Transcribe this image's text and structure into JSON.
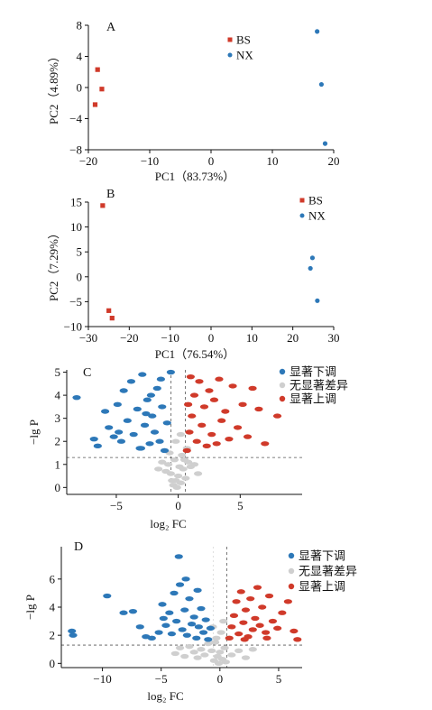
{
  "colors": {
    "red": "#d03a2a",
    "blue": "#2d78b8",
    "gray": "#cfcfcf"
  },
  "chart_data": [
    {
      "type": "scatter",
      "panel_label": "A",
      "xlabel": "PC1（83.73%）",
      "ylabel": "PC2（4.89%）",
      "xlim": [
        -20,
        20
      ],
      "ylim": [
        -8,
        8
      ],
      "xticks": [
        -20,
        -10,
        0,
        10,
        20
      ],
      "yticks": [
        -8,
        -4,
        0,
        4,
        8
      ],
      "xtick_labels": [
        "−20",
        "−10",
        "0",
        "10",
        "20"
      ],
      "ytick_labels": [
        "−8",
        "−4",
        "0",
        "4",
        "8"
      ],
      "legend_position": "top-right",
      "series": [
        {
          "name": "BS",
          "marker": "square",
          "color": "#d03a2a",
          "points": [
            [
              -18.5,
              2.3
            ],
            [
              -17.8,
              -0.2
            ],
            [
              -18.9,
              -2.2
            ]
          ]
        },
        {
          "name": "NX",
          "marker": "circle",
          "color": "#2d78b8",
          "points": [
            [
              17.3,
              7.2
            ],
            [
              18.0,
              0.4
            ],
            [
              18.6,
              -7.2
            ]
          ]
        }
      ]
    },
    {
      "type": "scatter",
      "panel_label": "B",
      "xlabel": "PC1（76.54%）",
      "ylabel": "PC2（7.29%）",
      "xlim": [
        -30,
        30
      ],
      "ylim": [
        -10,
        15
      ],
      "xticks": [
        -30,
        -20,
        -10,
        0,
        10,
        20,
        30
      ],
      "yticks": [
        -10,
        -5,
        0,
        5,
        10,
        15
      ],
      "xtick_labels": [
        "−30",
        "−20",
        "−10",
        "0",
        "10",
        "20",
        "30"
      ],
      "ytick_labels": [
        "−10",
        "−5",
        "0",
        "5",
        "10",
        "15"
      ],
      "legend_position": "top-right",
      "series": [
        {
          "name": "BS",
          "marker": "square",
          "color": "#d03a2a",
          "points": [
            [
              -26.5,
              14.3
            ],
            [
              -25.0,
              -6.8
            ],
            [
              -24.2,
              -8.3
            ]
          ]
        },
        {
          "name": "NX",
          "marker": "circle",
          "color": "#2d78b8",
          "points": [
            [
              24.8,
              3.8
            ],
            [
              24.3,
              1.7
            ],
            [
              26.0,
              -4.8
            ]
          ]
        }
      ]
    },
    {
      "type": "scatter",
      "subtype": "volcano",
      "panel_label": "C",
      "xlabel": "log₂ FC",
      "ylabel": "−lg P",
      "xlim": [
        -9,
        10
      ],
      "ylim": [
        -0.3,
        5.1
      ],
      "xticks": [
        -5,
        0,
        5
      ],
      "yticks": [
        0,
        1,
        2,
        3,
        4,
        5
      ],
      "xtick_labels": [
        "−5",
        "0",
        "5"
      ],
      "ytick_labels": [
        "0",
        "1",
        "2",
        "3",
        "4",
        "5"
      ],
      "threshold_y": 1.3,
      "threshold_x": [
        -0.58,
        0.58
      ],
      "legend_position": "top-right",
      "series": [
        {
          "name": "显著下调",
          "color": "#2d78b8",
          "points": [
            [
              -8.2,
              3.9
            ],
            [
              -6.8,
              2.1
            ],
            [
              -6.5,
              1.8
            ],
            [
              -5.9,
              3.3
            ],
            [
              -5.6,
              2.6
            ],
            [
              -5.2,
              2.2
            ],
            [
              -4.9,
              3.6
            ],
            [
              -4.6,
              2.0
            ],
            [
              -4.4,
              4.2
            ],
            [
              -4.1,
              2.9
            ],
            [
              -3.8,
              4.6
            ],
            [
              -3.6,
              2.3
            ],
            [
              -3.3,
              3.4
            ],
            [
              -3.1,
              1.7
            ],
            [
              -2.9,
              4.9
            ],
            [
              -2.7,
              2.7
            ],
            [
              -2.5,
              3.8
            ],
            [
              -2.3,
              1.9
            ],
            [
              -2.1,
              3.1
            ],
            [
              -1.9,
              2.4
            ],
            [
              -1.7,
              4.3
            ],
            [
              -1.5,
              2.0
            ],
            [
              -1.3,
              3.5
            ],
            [
              -1.1,
              1.6
            ],
            [
              -0.9,
              2.8
            ],
            [
              -3.0,
              1.7
            ],
            [
              -2.6,
              3.2
            ],
            [
              -4.8,
              2.4
            ],
            [
              -1.4,
              4.7
            ],
            [
              -2.2,
              4.0
            ],
            [
              -0.6,
              5.0
            ]
          ]
        },
        {
          "name": "无显著差异",
          "color": "#cfcfcf",
          "points": [
            [
              -0.4,
              0.1
            ],
            [
              -0.2,
              0.3
            ],
            [
              0.0,
              0.5
            ],
            [
              0.2,
              0.2
            ],
            [
              0.4,
              0.8
            ],
            [
              -0.6,
              0.6
            ],
            [
              0.6,
              0.4
            ],
            [
              -0.8,
              1.0
            ],
            [
              0.8,
              1.1
            ],
            [
              -1.0,
              0.7
            ],
            [
              1.0,
              0.9
            ],
            [
              -0.3,
              1.2
            ],
            [
              0.3,
              1.4
            ],
            [
              -1.3,
              1.1
            ],
            [
              1.3,
              1.0
            ],
            [
              -1.6,
              0.8
            ],
            [
              1.6,
              0.6
            ],
            [
              -0.1,
              0.0
            ],
            [
              0.1,
              0.9
            ],
            [
              -0.5,
              0.3
            ],
            [
              0.5,
              1.2
            ],
            [
              -0.7,
              1.5
            ],
            [
              0.7,
              1.7
            ],
            [
              -0.2,
              2.0
            ],
            [
              0.2,
              2.3
            ]
          ]
        },
        {
          "name": "显著上调",
          "color": "#d03a2a",
          "points": [
            [
              0.7,
              1.6
            ],
            [
              0.9,
              2.4
            ],
            [
              1.1,
              3.1
            ],
            [
              1.3,
              4.0
            ],
            [
              1.5,
              2.0
            ],
            [
              1.7,
              4.6
            ],
            [
              1.9,
              2.7
            ],
            [
              2.1,
              3.5
            ],
            [
              2.3,
              1.8
            ],
            [
              2.5,
              4.2
            ],
            [
              2.7,
              2.3
            ],
            [
              2.9,
              3.8
            ],
            [
              3.1,
              1.9
            ],
            [
              3.3,
              4.7
            ],
            [
              3.5,
              2.9
            ],
            [
              3.8,
              3.3
            ],
            [
              4.1,
              2.1
            ],
            [
              4.4,
              4.4
            ],
            [
              4.8,
              2.6
            ],
            [
              5.2,
              3.6
            ],
            [
              5.6,
              2.2
            ],
            [
              6.0,
              4.3
            ],
            [
              6.5,
              3.4
            ],
            [
              7.0,
              1.9
            ],
            [
              8.0,
              3.1
            ],
            [
              1.0,
              4.8
            ],
            [
              0.8,
              3.6
            ]
          ]
        }
      ],
      "legend_labels": [
        "显著下调",
        "无显著差异",
        "显著上调"
      ]
    },
    {
      "type": "scatter",
      "subtype": "volcano",
      "panel_label": "D",
      "xlabel": "log₂ FC",
      "ylabel": "−lg P",
      "xlim": [
        -13.5,
        7
      ],
      "ylim": [
        -0.3,
        8.3
      ],
      "xticks": [
        -10,
        -5,
        0,
        5
      ],
      "yticks": [
        0,
        2,
        4,
        6
      ],
      "xtick_labels": [
        "−10",
        "−5",
        "0",
        "5"
      ],
      "ytick_labels": [
        "0",
        "2",
        "4",
        "6"
      ],
      "threshold_y": 1.3,
      "threshold_x": [
        0.58
      ],
      "legend_position": "top-right",
      "series": [
        {
          "name": "显著下调",
          "color": "#2d78b8",
          "points": [
            [
              -12.6,
              2.3
            ],
            [
              -12.5,
              2.0
            ],
            [
              -9.6,
              4.8
            ],
            [
              -8.2,
              3.6
            ],
            [
              -7.4,
              3.7
            ],
            [
              -6.8,
              2.6
            ],
            [
              -6.3,
              1.9
            ],
            [
              -5.8,
              1.8
            ],
            [
              -5.2,
              2.2
            ],
            [
              -4.9,
              4.2
            ],
            [
              -4.6,
              2.7
            ],
            [
              -4.3,
              3.6
            ],
            [
              -4.1,
              2.1
            ],
            [
              -3.9,
              5.0
            ],
            [
              -3.7,
              3.0
            ],
            [
              -3.5,
              7.6
            ],
            [
              -3.2,
              2.4
            ],
            [
              -3.0,
              3.8
            ],
            [
              -2.8,
              2.0
            ],
            [
              -2.6,
              4.6
            ],
            [
              -2.4,
              2.8
            ],
            [
              -2.2,
              3.3
            ],
            [
              -2.0,
              1.8
            ],
            [
              -1.8,
              2.6
            ],
            [
              -1.6,
              3.9
            ],
            [
              -1.4,
              2.2
            ],
            [
              -1.2,
              3.1
            ],
            [
              -1.0,
              1.7
            ],
            [
              -0.8,
              2.5
            ],
            [
              -3.4,
              5.6
            ],
            [
              -2.9,
              6.0
            ],
            [
              -1.9,
              5.2
            ],
            [
              -4.8,
              3.2
            ]
          ]
        },
        {
          "name": "无显著差异",
          "color": "#cfcfcf",
          "points": [
            [
              -0.5,
              0.2
            ],
            [
              -0.2,
              0.5
            ],
            [
              0.0,
              0.8
            ],
            [
              0.2,
              0.3
            ],
            [
              0.4,
              1.1
            ],
            [
              -0.7,
              0.9
            ],
            [
              -1.0,
              1.4
            ],
            [
              -1.3,
              0.6
            ],
            [
              -1.6,
              1.0
            ],
            [
              -1.9,
              0.4
            ],
            [
              -2.2,
              0.8
            ],
            [
              -2.6,
              1.2
            ],
            [
              -3.0,
              0.5
            ],
            [
              -3.4,
              1.1
            ],
            [
              -3.8,
              0.7
            ],
            [
              -0.3,
              1.8
            ],
            [
              0.1,
              2.2
            ],
            [
              -0.6,
              2.6
            ],
            [
              0.3,
              3.0
            ],
            [
              -0.4,
              1.5
            ],
            [
              0.5,
              0.1
            ],
            [
              1.0,
              0.6
            ],
            [
              1.6,
              0.9
            ],
            [
              2.2,
              0.4
            ],
            [
              2.8,
              1.0
            ],
            [
              -0.1,
              0.0
            ]
          ]
        },
        {
          "name": "显著上调",
          "color": "#d03a2a",
          "points": [
            [
              0.8,
              1.8
            ],
            [
              1.0,
              2.6
            ],
            [
              1.2,
              3.4
            ],
            [
              1.4,
              4.4
            ],
            [
              1.6,
              2.1
            ],
            [
              1.8,
              5.1
            ],
            [
              2.0,
              2.9
            ],
            [
              2.2,
              3.8
            ],
            [
              2.4,
              1.9
            ],
            [
              2.6,
              4.6
            ],
            [
              2.8,
              2.4
            ],
            [
              3.0,
              3.2
            ],
            [
              3.2,
              5.4
            ],
            [
              3.4,
              2.7
            ],
            [
              3.6,
              4.0
            ],
            [
              3.9,
              2.2
            ],
            [
              4.2,
              4.8
            ],
            [
              4.5,
              3.0
            ],
            [
              4.9,
              2.5
            ],
            [
              5.3,
              3.6
            ],
            [
              5.8,
              4.4
            ],
            [
              6.3,
              2.3
            ],
            [
              6.6,
              1.7
            ],
            [
              2.1,
              1.7
            ],
            [
              4.0,
              1.8
            ]
          ]
        }
      ],
      "legend_labels": [
        "显著下调",
        "无显著差异",
        "显著上调"
      ]
    }
  ]
}
